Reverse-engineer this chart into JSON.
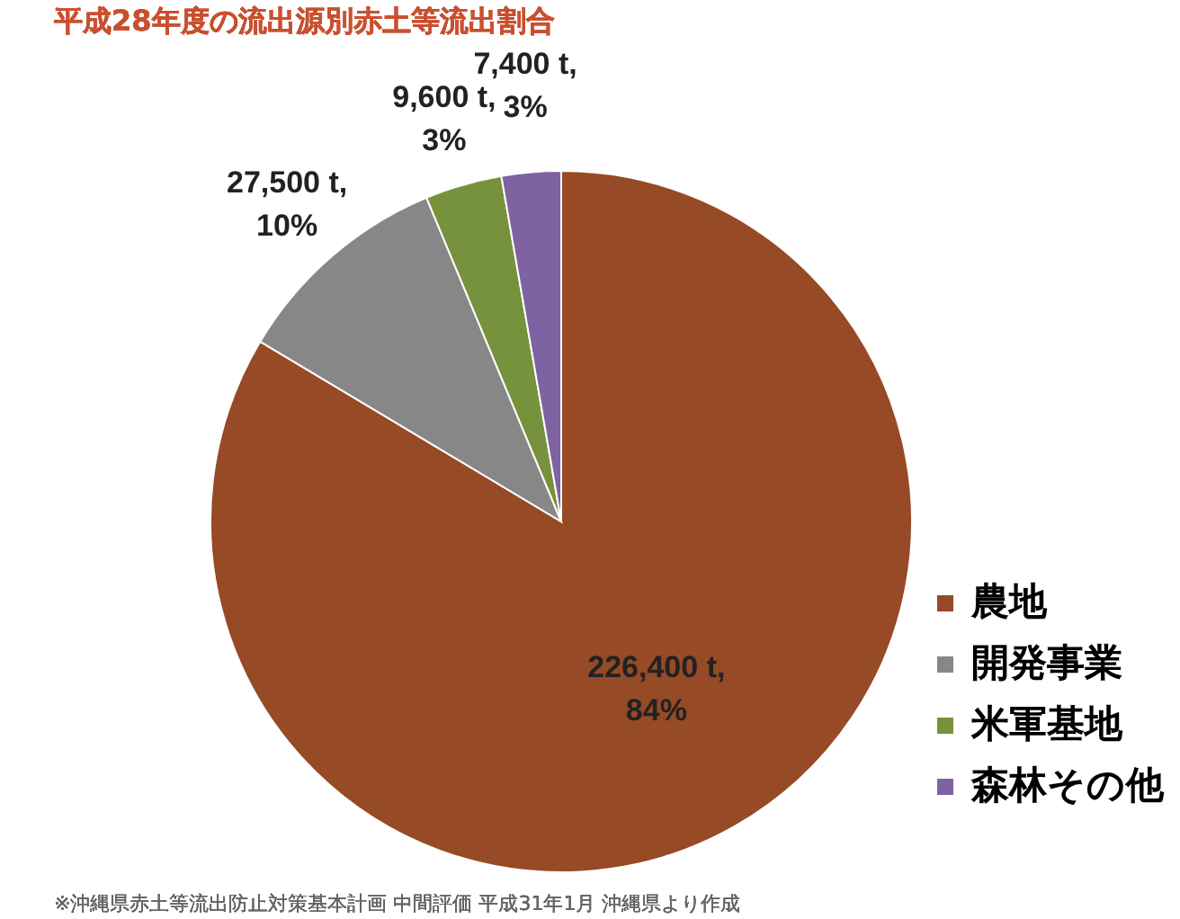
{
  "chart_data": {
    "type": "pie",
    "title": "平成28年度の流出源別赤土等流出割合",
    "categories": [
      "農地",
      "開発事業",
      "米軍基地",
      "森林その他"
    ],
    "values": [
      226400,
      27500,
      9600,
      7400
    ],
    "colors": [
      "#964a25",
      "#878787",
      "#76923c",
      "#7f62a1"
    ],
    "value_labels": [
      "226,400 t,\n84%",
      "27,500 t,\n10%",
      "9,600 t,\n3%",
      "7,400 t,\n3%"
    ],
    "legend": "bottom right",
    "annotations": [
      "※沖縄県赤土等流出防止対策基本計画 中間評価 平成31年1月 沖縄県より作成"
    ]
  }
}
